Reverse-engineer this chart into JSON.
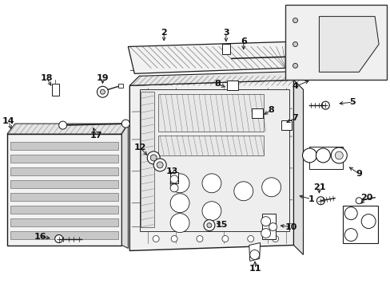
{
  "bg_color": "#ffffff",
  "line_color": "#1a1a1a",
  "label_color": "#111111",
  "font_size": 7.5,
  "fig_width": 4.89,
  "fig_height": 3.6,
  "dpi": 100
}
